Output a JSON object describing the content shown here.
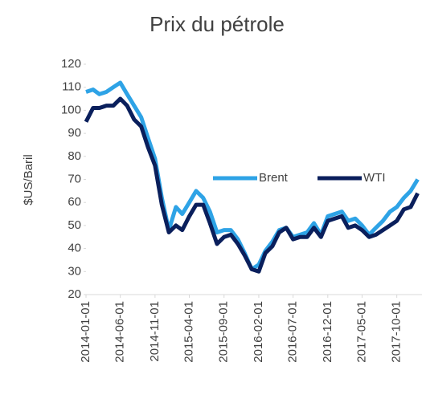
{
  "chart_data": {
    "type": "line",
    "title": "Prix du pétrole",
    "y_label": "$US/Baril",
    "x": [
      "2014-01-01",
      "2014-02-01",
      "2014-03-01",
      "2014-04-01",
      "2014-05-01",
      "2014-06-01",
      "2014-07-01",
      "2014-08-01",
      "2014-09-01",
      "2014-10-01",
      "2014-11-01",
      "2014-12-01",
      "2015-01-01",
      "2015-02-01",
      "2015-03-01",
      "2015-04-01",
      "2015-05-01",
      "2015-06-01",
      "2015-07-01",
      "2015-08-01",
      "2015-09-01",
      "2015-10-01",
      "2015-11-01",
      "2015-12-01",
      "2016-01-01",
      "2016-02-01",
      "2016-03-01",
      "2016-04-01",
      "2016-05-01",
      "2016-06-01",
      "2016-07-01",
      "2016-08-01",
      "2016-09-01",
      "2016-10-01",
      "2016-11-01",
      "2016-12-01",
      "2017-01-01",
      "2017-02-01",
      "2017-03-01",
      "2017-04-01",
      "2017-05-01",
      "2017-06-01",
      "2017-07-01",
      "2017-08-01",
      "2017-09-01",
      "2017-10-01",
      "2017-11-01",
      "2017-12-01",
      "2018-01-01"
    ],
    "series": [
      {
        "name": "Brent",
        "color": "#2ea3e6",
        "values": [
          108,
          109,
          107,
          108,
          110,
          112,
          107,
          102,
          97,
          88,
          79,
          62,
          48,
          58,
          55,
          60,
          65,
          62,
          56,
          47,
          48,
          48,
          44,
          38,
          31,
          33,
          39,
          43,
          48,
          49,
          45,
          46,
          47,
          51,
          46,
          54,
          55,
          56,
          52,
          53,
          50,
          46,
          49,
          52,
          56,
          58,
          62,
          65,
          70
        ]
      },
      {
        "name": "WTI",
        "color": "#0a1f5c",
        "values": [
          95,
          101,
          101,
          102,
          102,
          105,
          102,
          96,
          93,
          84,
          76,
          59,
          47,
          50,
          48,
          54,
          59,
          59,
          51,
          42,
          45,
          46,
          42,
          37,
          31,
          30,
          38,
          41,
          47,
          49,
          44,
          45,
          45,
          49,
          45,
          52,
          53,
          54,
          49,
          50,
          48,
          45,
          46,
          48,
          50,
          52,
          57,
          58,
          64
        ]
      }
    ],
    "xlim": [
      "2014-01-01",
      "2018-01-20"
    ],
    "xticks": [
      "2014-01-01",
      "2014-06-01",
      "2014-11-01",
      "2015-04-01",
      "2015-09-01",
      "2016-02-01",
      "2016-07-01",
      "2016-12-01",
      "2017-05-01",
      "2017-10-01"
    ],
    "ylim": [
      20,
      120
    ],
    "yticks": [
      20,
      30,
      40,
      50,
      60,
      70,
      80,
      90,
      100,
      110,
      120
    ],
    "legend": "right",
    "grid": false
  }
}
